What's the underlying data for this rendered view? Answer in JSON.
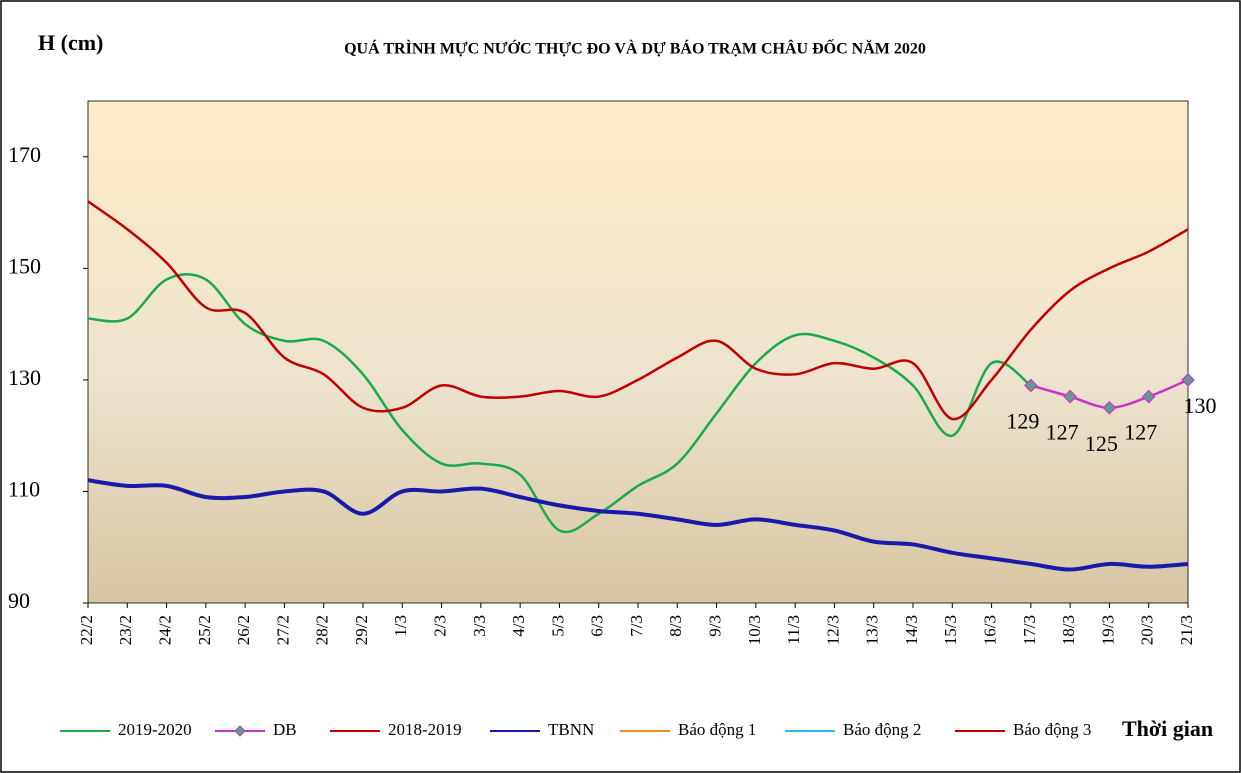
{
  "chart_data": {
    "type": "line",
    "title": "QUÁ TRÌNH MỰC NƯỚC THỰC ĐO VÀ DỰ BÁO TRẠM CHÂU ĐỐC NĂM 2020",
    "y_label": "H (cm)",
    "x_label": "Thời gian",
    "categories": [
      "22/2",
      "23/2",
      "24/2",
      "25/2",
      "26/2",
      "27/2",
      "28/2",
      "29/2",
      "1/3",
      "2/3",
      "3/3",
      "4/3",
      "5/3",
      "6/3",
      "7/3",
      "8/3",
      "9/3",
      "10/3",
      "11/3",
      "12/3",
      "13/3",
      "14/3",
      "15/3",
      "16/3",
      "17/3",
      "18/3",
      "19/3",
      "20/3",
      "21/3"
    ],
    "ylim": [
      90,
      180
    ],
    "yticks": [
      90,
      110,
      130,
      150,
      170
    ],
    "legend": "bottom",
    "series": [
      {
        "name": "2019-2020",
        "color": "#1aaa4a",
        "values": [
          141,
          141,
          148,
          148,
          140,
          137,
          137,
          131,
          121,
          115,
          115,
          113,
          103,
          106,
          111,
          115,
          124,
          133,
          138,
          137,
          134,
          129,
          120,
          133,
          129,
          null,
          null,
          null,
          null
        ]
      },
      {
        "name": "DB",
        "color": "#cc33cc",
        "marker": "diamond",
        "marker_color": "#5ba08a",
        "data_labels": true,
        "values": [
          null,
          null,
          null,
          null,
          null,
          null,
          null,
          null,
          null,
          null,
          null,
          null,
          null,
          null,
          null,
          null,
          null,
          null,
          null,
          null,
          null,
          null,
          null,
          null,
          129,
          127,
          125,
          127,
          130
        ]
      },
      {
        "name": "2018-2019",
        "color": "#c00000",
        "values": [
          162,
          157,
          151,
          143,
          142,
          134,
          131,
          125,
          125,
          129,
          127,
          127,
          128,
          127,
          130,
          134,
          137,
          132,
          131,
          133,
          132,
          133,
          123,
          130,
          139,
          146,
          150,
          153,
          157
        ]
      },
      {
        "name": "TBNN",
        "color": "#1a1aaa",
        "values": [
          112,
          111,
          111,
          109,
          109,
          110,
          110,
          106,
          110,
          110,
          110.5,
          109,
          107.5,
          106.5,
          106,
          105,
          104,
          105,
          104,
          103,
          101,
          100.5,
          99,
          98,
          97,
          96,
          97,
          96.5,
          97
        ]
      },
      {
        "name": "Báo động 1",
        "color": "#f08a24",
        "values": [
          null,
          null,
          null,
          null,
          null,
          null,
          null,
          null,
          null,
          null,
          null,
          null,
          null,
          null,
          null,
          null,
          null,
          null,
          null,
          null,
          null,
          null,
          null,
          null,
          null,
          null,
          null,
          null,
          null
        ]
      },
      {
        "name": "Báo động 2",
        "color": "#22bbee",
        "values": [
          null,
          null,
          null,
          null,
          null,
          null,
          null,
          null,
          null,
          null,
          null,
          null,
          null,
          null,
          null,
          null,
          null,
          null,
          null,
          null,
          null,
          null,
          null,
          null,
          null,
          null,
          null,
          null,
          null
        ]
      },
      {
        "name": "Báo động 3",
        "color": "#c00000",
        "values": [
          null,
          null,
          null,
          null,
          null,
          null,
          null,
          null,
          null,
          null,
          null,
          null,
          null,
          null,
          null,
          null,
          null,
          null,
          null,
          null,
          null,
          null,
          null,
          null,
          null,
          null,
          null,
          null,
          null
        ]
      }
    ]
  }
}
